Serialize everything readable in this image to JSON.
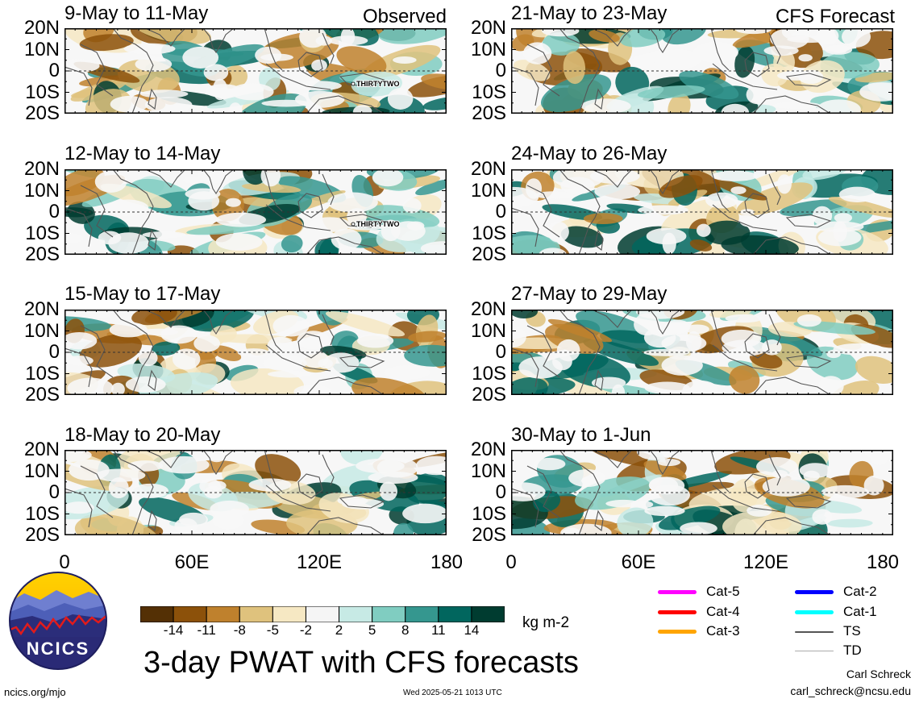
{
  "column_headers": {
    "left": "Observed",
    "right": "CFS Forecast"
  },
  "panels": [
    {
      "id": "p1",
      "title": "9-May to 11-May",
      "storm_label": "THIRTYTWO"
    },
    {
      "id": "p2",
      "title": "12-May to 14-May",
      "storm_label": "THIRTYTWO"
    },
    {
      "id": "p3",
      "title": "15-May to 17-May",
      "storm_label": ""
    },
    {
      "id": "p4",
      "title": "18-May to 20-May",
      "storm_label": ""
    },
    {
      "id": "p5",
      "title": "21-May to 23-May",
      "storm_label": ""
    },
    {
      "id": "p6",
      "title": "24-May to 26-May",
      "storm_label": ""
    },
    {
      "id": "p7",
      "title": "27-May to 29-May",
      "storm_label": ""
    },
    {
      "id": "p8",
      "title": "30-May to 1-Jun",
      "storm_label": ""
    }
  ],
  "lat_labels": [
    "20N",
    "10N",
    "0",
    "10S",
    "20S"
  ],
  "lon_labels": [
    "0",
    "60E",
    "120E",
    "180"
  ],
  "colorbar": {
    "colors": [
      "#543005",
      "#8c510a",
      "#bf812d",
      "#dfc27d",
      "#f6e8c3",
      "#f5f5f5",
      "#c7eae5",
      "#80cdc1",
      "#35978f",
      "#01665e",
      "#003c30"
    ],
    "labels": [
      "-14",
      "-11",
      "-8",
      "-5",
      "-2",
      "2",
      "5",
      "8",
      "11",
      "14"
    ],
    "units": "kg m-2"
  },
  "track_legend": [
    {
      "label": "Cat-5",
      "color": "#ff00ff"
    },
    {
      "label": "Cat-4",
      "color": "#ff0000"
    },
    {
      "label": "Cat-3",
      "color": "#ffa500"
    },
    {
      "label": "Cat-2",
      "color": "#0000ff"
    },
    {
      "label": "Cat-1",
      "color": "#00ffff"
    },
    {
      "label": "TS",
      "color": "#555555"
    },
    {
      "label": "TD",
      "color": "#aaaaaa"
    }
  ],
  "logo_text": "NCICS",
  "main_title": "3-day PWAT with CFS forecasts",
  "footer": {
    "url": "ncics.org/mjo",
    "timestamp": "Wed 2025-05-21 1013 UTC",
    "author": "Carl Schreck",
    "email": "carl_schreck@ncsu.edu"
  }
}
